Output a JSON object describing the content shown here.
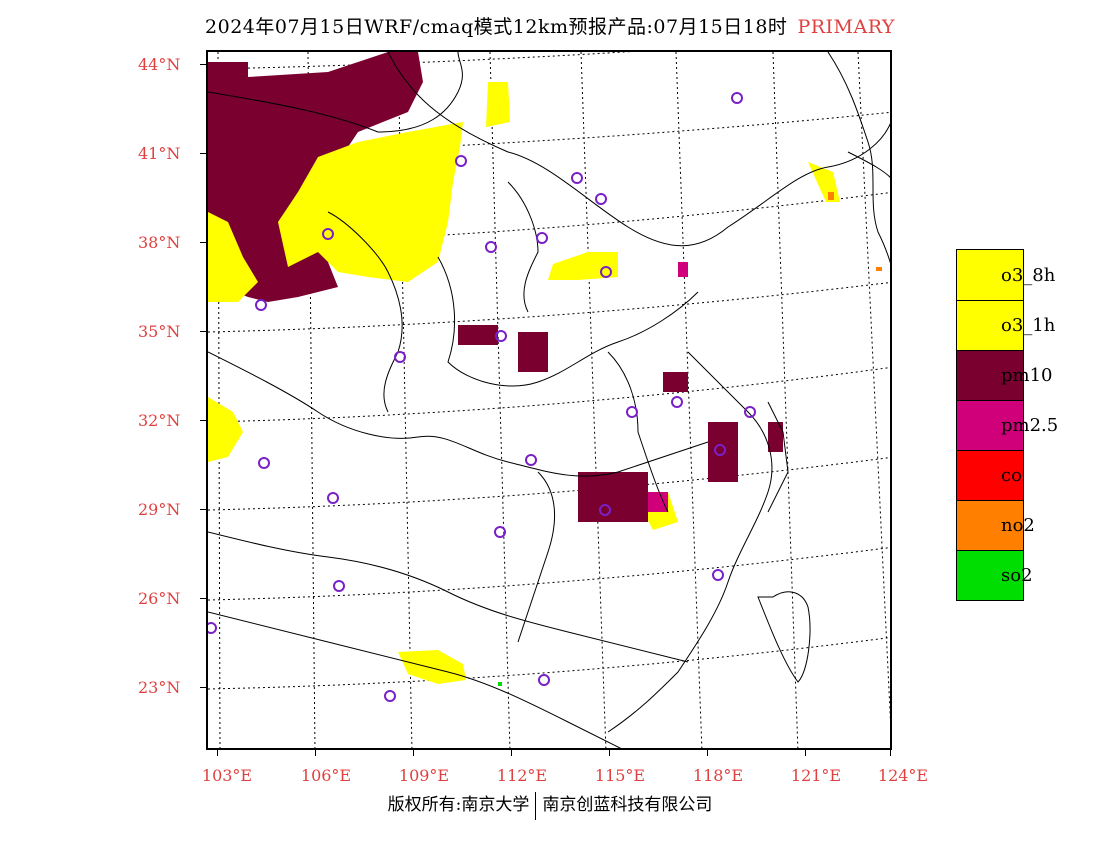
{
  "title": {
    "text": "2024年07月15日WRF/cmaq模式12km预报产品:07月15日18时",
    "tag": "PRIMARY",
    "tag_color": "#e04040"
  },
  "map": {
    "lat_labels": [
      "44°N",
      "41°N",
      "38°N",
      "35°N",
      "32°N",
      "29°N",
      "26°N",
      "23°N"
    ],
    "lon_labels": [
      "103°E",
      "106°E",
      "109°E",
      "112°E",
      "115°E",
      "118°E",
      "121°E",
      "124°E"
    ],
    "label_color": "#e04040"
  },
  "legend": {
    "items": [
      {
        "label": "o3_8h",
        "color": "#ffff00"
      },
      {
        "label": "o3_1h",
        "color": "#ffff00"
      },
      {
        "label": "pm10",
        "color": "#7a0030"
      },
      {
        "label": "pm2.5",
        "color": "#d0007a"
      },
      {
        "label": "co",
        "color": "#ff0000"
      },
      {
        "label": "no2",
        "color": "#ff7f00"
      },
      {
        "label": "so2",
        "color": "#00dd00"
      }
    ]
  },
  "footer": {
    "left": "版权所有:南京大学",
    "right": "南京创蓝科技有限公司"
  }
}
